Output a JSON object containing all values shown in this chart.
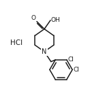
{
  "background_color": "#ffffff",
  "line_color": "#1a1a1a",
  "line_width": 1.1,
  "text_color": "#1a1a1a",
  "font_size": 6.5,
  "hcl_label": "HCl",
  "oh_label": "OH",
  "o_label": "O",
  "n_label": "N",
  "cl1_label": "Cl",
  "cl2_label": "Cl",
  "figsize": [
    1.32,
    1.41
  ],
  "dpi": 100
}
